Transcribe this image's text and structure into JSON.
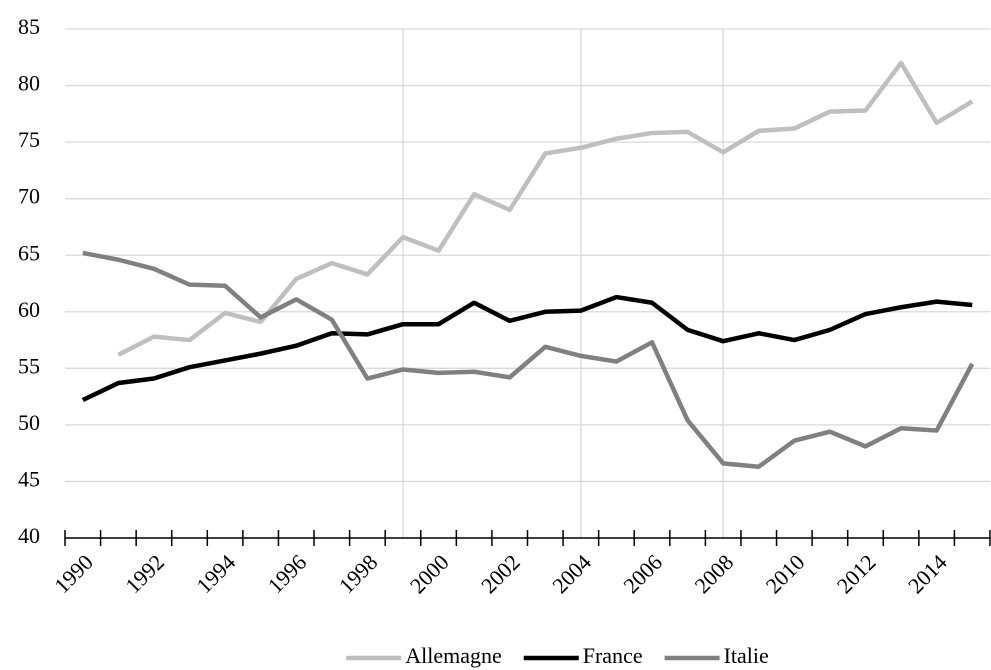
{
  "chart_data": {
    "type": "line",
    "x": [
      1990,
      1991,
      1992,
      1993,
      1994,
      1995,
      1996,
      1997,
      1998,
      1999,
      2000,
      2001,
      2002,
      2003,
      2004,
      2005,
      2006,
      2007,
      2008,
      2009,
      2010,
      2011,
      2012,
      2013,
      2014,
      2015
    ],
    "xlim": [
      1989.5,
      2015.5
    ],
    "xticks": [
      1990,
      1992,
      1994,
      1996,
      1998,
      2000,
      2002,
      2004,
      2006,
      2008,
      2010,
      2012,
      2014
    ],
    "ylim": [
      40,
      85
    ],
    "yticks": [
      40,
      45,
      50,
      55,
      60,
      65,
      70,
      75,
      80,
      85
    ],
    "grid": true,
    "vlines": [
      1999,
      2004,
      2008
    ],
    "legend": "bottom",
    "series": [
      {
        "name": "Allemagne",
        "color": "#bfbfbf",
        "values": [
          null,
          56.2,
          57.8,
          57.5,
          59.9,
          59.1,
          62.9,
          64.3,
          63.3,
          66.6,
          65.4,
          70.4,
          69.0,
          74.0,
          74.5,
          75.3,
          75.8,
          75.9,
          74.1,
          76.0,
          76.2,
          77.7,
          77.8,
          82.0,
          76.7,
          78.6
        ]
      },
      {
        "name": "France",
        "color": "#000000",
        "values": [
          52.2,
          53.7,
          54.1,
          55.1,
          55.7,
          56.3,
          57.0,
          58.1,
          58.0,
          58.9,
          58.9,
          60.8,
          59.2,
          60.0,
          60.1,
          61.3,
          60.8,
          58.4,
          57.4,
          58.1,
          57.5,
          58.4,
          59.8,
          60.4,
          60.9,
          60.6
        ]
      },
      {
        "name": "Italie",
        "color": "#808080",
        "values": [
          65.2,
          64.6,
          63.8,
          62.4,
          62.3,
          59.5,
          61.1,
          59.3,
          54.1,
          54.9,
          54.6,
          54.7,
          54.2,
          56.9,
          56.1,
          55.6,
          57.3,
          50.4,
          46.6,
          46.3,
          48.6,
          49.4,
          48.1,
          49.7,
          49.5,
          55.4
        ]
      }
    ]
  }
}
